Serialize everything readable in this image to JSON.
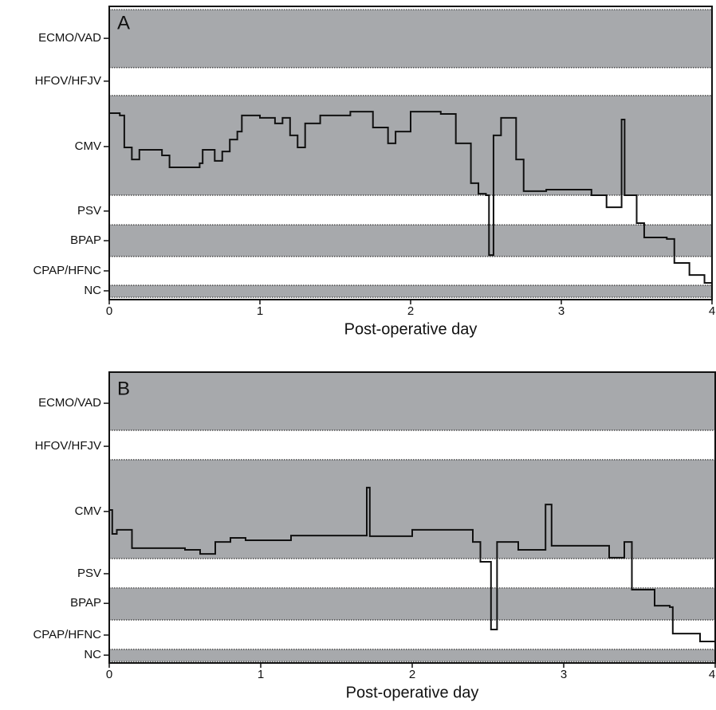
{
  "chart_data": [
    {
      "type": "line",
      "step": true,
      "label": "A",
      "xlabel": "Post-operative day",
      "color": "#111111",
      "band_color": "#a7a9ac",
      "xlim": [
        0,
        4
      ],
      "xticks": [
        0,
        1,
        2,
        3,
        4
      ],
      "ylim": [
        0,
        100
      ],
      "yticks": [
        {
          "value": 89.1,
          "label": "ECMO/VAD"
        },
        {
          "value": 74.5,
          "label": "HFOV/HFJV"
        },
        {
          "value": 52.2,
          "label": "CMV"
        },
        {
          "value": 30.2,
          "label": "PSV"
        },
        {
          "value": 20.1,
          "label": "BPAP"
        },
        {
          "value": 9.8,
          "label": "CPAP/HFNC"
        },
        {
          "value": 3.0,
          "label": "NC"
        }
      ],
      "bands": [
        [
          79.1,
          98.9
        ],
        [
          35.6,
          69.6
        ],
        [
          14.7,
          25.5
        ],
        [
          0.8,
          4.9
        ]
      ],
      "x": [
        0,
        0.07,
        0.1,
        0.15,
        0.2,
        0.35,
        0.4,
        0.6,
        0.62,
        0.7,
        0.75,
        0.8,
        0.85,
        0.88,
        1.0,
        1.1,
        1.15,
        1.2,
        1.25,
        1.3,
        1.4,
        1.6,
        1.75,
        1.85,
        1.9,
        2.0,
        2.2,
        2.3,
        2.4,
        2.45,
        2.5,
        2.52,
        2.55,
        2.6,
        2.7,
        2.75,
        2.9,
        3.2,
        3.3,
        3.4,
        3.42,
        3.5,
        3.55,
        3.7,
        3.75,
        3.85,
        3.95,
        4.0
      ],
      "values": [
        63.6,
        62.8,
        51.9,
        47.8,
        51.1,
        49.2,
        45.1,
        46.5,
        51.1,
        47.3,
        50.5,
        54.6,
        57.3,
        62.8,
        62.0,
        60.1,
        62.0,
        56.0,
        51.9,
        60.1,
        62.8,
        64.1,
        58.7,
        53.3,
        57.3,
        64.1,
        63.3,
        53.3,
        39.7,
        36.1,
        35.6,
        15.2,
        56.0,
        62.0,
        47.8,
        37.0,
        37.5,
        35.6,
        31.5,
        61.4,
        35.6,
        26.1,
        21.2,
        20.7,
        12.5,
        8.4,
        5.7,
        1.6
      ]
    },
    {
      "type": "line",
      "step": true,
      "label": "B",
      "xlabel": "Post-operative day",
      "color": "#111111",
      "band_color": "#a7a9ac",
      "xlim": [
        0,
        4
      ],
      "xticks": [
        0,
        1,
        2,
        3,
        4
      ],
      "ylim": [
        0,
        100
      ],
      "yticks": [
        {
          "value": 89.3,
          "label": "ECMO/VAD"
        },
        {
          "value": 74.5,
          "label": "HFOV/HFJV"
        },
        {
          "value": 52.1,
          "label": "CMV"
        },
        {
          "value": 30.7,
          "label": "PSV"
        },
        {
          "value": 20.5,
          "label": "BPAP"
        },
        {
          "value": 9.6,
          "label": "CPAP/HFNC"
        },
        {
          "value": 2.7,
          "label": "NC"
        }
      ],
      "bands": [
        [
          80.0,
          100
        ],
        [
          35.9,
          69.9
        ],
        [
          14.8,
          25.8
        ],
        [
          0.5,
          4.7
        ]
      ],
      "x": [
        0,
        0.02,
        0.05,
        0.15,
        0.5,
        0.6,
        0.7,
        0.8,
        0.9,
        1.2,
        1.7,
        1.72,
        2.0,
        2.4,
        2.45,
        2.52,
        2.56,
        2.7,
        2.88,
        2.92,
        3.3,
        3.4,
        3.45,
        3.6,
        3.7,
        3.72,
        3.9,
        4.0
      ],
      "values": [
        52.6,
        44.4,
        45.8,
        39.5,
        38.9,
        37.5,
        41.6,
        43.0,
        42.2,
        43.8,
        60.3,
        43.6,
        45.8,
        41.6,
        34.8,
        11.5,
        41.6,
        38.9,
        54.5,
        40.3,
        36.2,
        41.6,
        25.2,
        19.7,
        19.2,
        10.1,
        7.4,
        5.5
      ]
    }
  ]
}
